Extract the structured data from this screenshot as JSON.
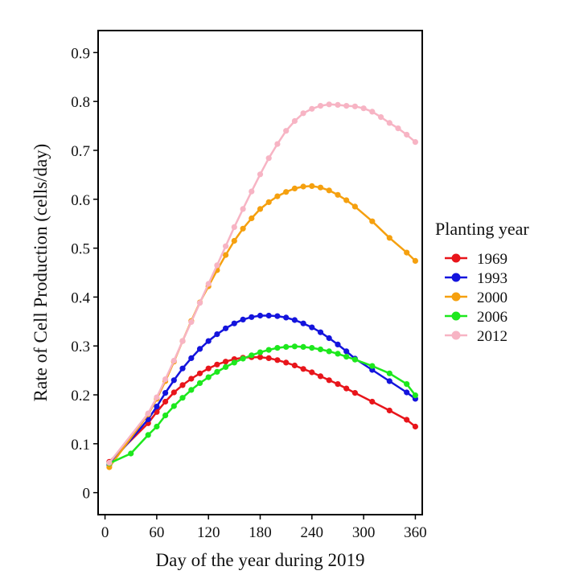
{
  "chart_data": {
    "type": "line",
    "title": "",
    "xlabel": "Day of the year during 2019",
    "ylabel": "Rate of Cell Production (cells/day)",
    "xlim": [
      -8,
      368
    ],
    "ylim": [
      -0.045,
      0.945
    ],
    "xticks": [
      0,
      60,
      120,
      180,
      240,
      300,
      360
    ],
    "yticks": [
      0,
      0.1,
      0.2,
      0.3,
      0.4,
      0.5,
      0.6,
      0.7,
      0.8,
      0.9
    ],
    "xtick_labels": [
      "0",
      "60",
      "120",
      "180",
      "240",
      "300",
      "360"
    ],
    "ytick_labels": [
      "0",
      "0.1",
      "0.2",
      "0.3",
      "0.4",
      "0.5",
      "0.6",
      "0.7",
      "0.8",
      "0.9"
    ],
    "grid": false,
    "legend": {
      "title": "Planting year",
      "placement": "right"
    },
    "series": [
      {
        "name": "1969",
        "color": "#e8151b",
        "x": [
          5,
          50,
          60,
          70,
          80,
          90,
          100,
          110,
          120,
          130,
          140,
          150,
          160,
          170,
          180,
          190,
          200,
          210,
          220,
          230,
          240,
          250,
          260,
          270,
          280,
          290,
          310,
          330,
          350,
          360
        ],
        "y": [
          0.063,
          0.142,
          0.165,
          0.186,
          0.205,
          0.22,
          0.233,
          0.244,
          0.254,
          0.262,
          0.268,
          0.273,
          0.276,
          0.277,
          0.277,
          0.275,
          0.271,
          0.266,
          0.26,
          0.253,
          0.246,
          0.238,
          0.23,
          0.222,
          0.213,
          0.204,
          0.186,
          0.168,
          0.149,
          0.135
        ]
      },
      {
        "name": "1993",
        "color": "#1414dd",
        "x": [
          5,
          50,
          60,
          70,
          80,
          90,
          100,
          110,
          120,
          130,
          140,
          150,
          160,
          170,
          180,
          190,
          200,
          210,
          220,
          230,
          240,
          250,
          260,
          270,
          280,
          290,
          310,
          330,
          350,
          360
        ],
        "y": [
          0.057,
          0.15,
          0.176,
          0.204,
          0.23,
          0.254,
          0.275,
          0.294,
          0.31,
          0.324,
          0.336,
          0.346,
          0.354,
          0.359,
          0.362,
          0.362,
          0.361,
          0.358,
          0.353,
          0.346,
          0.338,
          0.328,
          0.316,
          0.303,
          0.289,
          0.274,
          0.251,
          0.228,
          0.205,
          0.192
        ]
      },
      {
        "name": "2000",
        "color": "#f5a00f",
        "x": [
          5,
          50,
          60,
          70,
          80,
          90,
          100,
          110,
          120,
          130,
          140,
          150,
          160,
          170,
          180,
          190,
          200,
          210,
          220,
          230,
          240,
          250,
          260,
          270,
          280,
          290,
          310,
          330,
          350,
          360
        ],
        "y": [
          0.052,
          0.16,
          0.192,
          0.228,
          0.268,
          0.31,
          0.351,
          0.389,
          0.422,
          0.455,
          0.486,
          0.515,
          0.54,
          0.561,
          0.58,
          0.594,
          0.606,
          0.615,
          0.622,
          0.626,
          0.627,
          0.624,
          0.618,
          0.609,
          0.598,
          0.585,
          0.555,
          0.521,
          0.491,
          0.474
        ]
      },
      {
        "name": "2006",
        "color": "#1de81d",
        "x": [
          5,
          30,
          50,
          60,
          70,
          80,
          90,
          100,
          110,
          120,
          130,
          140,
          150,
          160,
          170,
          180,
          190,
          200,
          210,
          220,
          230,
          240,
          250,
          260,
          270,
          280,
          290,
          310,
          330,
          350,
          360
        ],
        "y": [
          0.06,
          0.08,
          0.118,
          0.135,
          0.158,
          0.177,
          0.194,
          0.21,
          0.224,
          0.236,
          0.247,
          0.257,
          0.266,
          0.274,
          0.281,
          0.287,
          0.292,
          0.296,
          0.298,
          0.299,
          0.298,
          0.296,
          0.293,
          0.289,
          0.284,
          0.278,
          0.272,
          0.259,
          0.244,
          0.222,
          0.199
        ]
      },
      {
        "name": "2012",
        "color": "#f7b4c4",
        "x": [
          5,
          50,
          60,
          70,
          80,
          90,
          100,
          110,
          120,
          130,
          140,
          150,
          160,
          170,
          180,
          190,
          200,
          210,
          220,
          230,
          240,
          250,
          260,
          270,
          280,
          290,
          300,
          310,
          320,
          330,
          340,
          350,
          360
        ],
        "y": [
          0.061,
          0.162,
          0.195,
          0.232,
          0.27,
          0.31,
          0.349,
          0.388,
          0.427,
          0.465,
          0.504,
          0.543,
          0.58,
          0.616,
          0.651,
          0.684,
          0.713,
          0.74,
          0.76,
          0.776,
          0.785,
          0.791,
          0.794,
          0.793,
          0.791,
          0.79,
          0.786,
          0.779,
          0.768,
          0.756,
          0.745,
          0.732,
          0.717
        ]
      }
    ]
  }
}
